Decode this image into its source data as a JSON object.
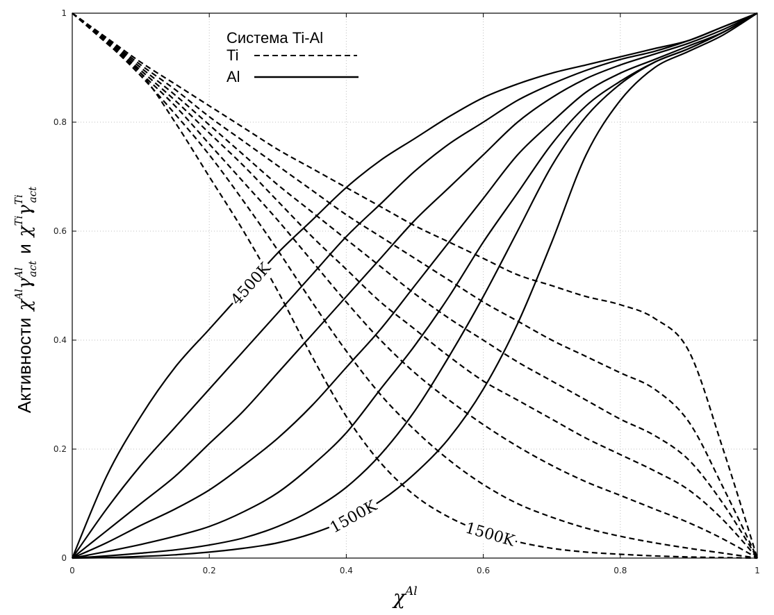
{
  "chart_data": {
    "type": "line",
    "title": "",
    "xlabel": {
      "base": "χ",
      "sup": "Al"
    },
    "ylabel": {
      "prefix": "Активности",
      "al": {
        "base": "χ",
        "sup": "Al",
        "gamma": "γ",
        "gamma_sup": "Al",
        "gamma_sub": "act"
      },
      "conj": "и",
      "ti": {
        "base": "χ",
        "sup": "Ti",
        "gamma": "γ",
        "gamma_sup": "Ti",
        "gamma_sub": "act"
      }
    },
    "xlim": [
      0,
      1
    ],
    "ylim": [
      0,
      1
    ],
    "x_ticks": [
      0,
      0.2,
      0.4,
      0.6,
      0.8,
      1
    ],
    "y_ticks": [
      0,
      0.2,
      0.4,
      0.6,
      0.8,
      1
    ],
    "x_tick_labels": [
      "0",
      "0.2",
      "0.4",
      "0.6",
      "0.8",
      "1"
    ],
    "y_tick_labels": [
      "0",
      "0.2",
      "0.4",
      "0.6",
      "0.8",
      "1"
    ],
    "grid": true,
    "legend": {
      "placement": "top-center",
      "title": "Система Ti-Al",
      "entries": [
        {
          "label": "Ti",
          "style": "dashed"
        },
        {
          "label": "Al",
          "style": "solid"
        }
      ]
    },
    "annotations": [
      {
        "text": "4500K",
        "curve": "al-4500K",
        "at_x": 0.26
      },
      {
        "text": "1500K",
        "curve": "al-1500K",
        "at_x": 0.41
      },
      {
        "text": "1500K",
        "curve": "ti-1500K",
        "at_x": 0.61
      }
    ],
    "series": [
      {
        "id": "al-4500K",
        "element": "Al",
        "style": "solid",
        "x": [
          0,
          0.05,
          0.1,
          0.15,
          0.2,
          0.25,
          0.3,
          0.35,
          0.4,
          0.45,
          0.5,
          0.55,
          0.6,
          0.65,
          0.7,
          0.75,
          0.8,
          0.85,
          0.9,
          0.95,
          1
        ],
        "y": [
          0,
          0.15,
          0.26,
          0.35,
          0.42,
          0.49,
          0.56,
          0.62,
          0.68,
          0.73,
          0.77,
          0.81,
          0.845,
          0.87,
          0.89,
          0.905,
          0.92,
          0.935,
          0.95,
          0.975,
          1
        ]
      },
      {
        "id": "al-4000K",
        "element": "Al",
        "style": "solid",
        "x": [
          0,
          0.05,
          0.1,
          0.15,
          0.2,
          0.25,
          0.3,
          0.35,
          0.4,
          0.45,
          0.5,
          0.55,
          0.6,
          0.65,
          0.7,
          0.75,
          0.8,
          0.85,
          0.9,
          0.95,
          1
        ],
        "y": [
          0,
          0.09,
          0.17,
          0.24,
          0.31,
          0.38,
          0.45,
          0.52,
          0.59,
          0.65,
          0.71,
          0.76,
          0.8,
          0.84,
          0.87,
          0.895,
          0.915,
          0.93,
          0.95,
          0.975,
          1
        ]
      },
      {
        "id": "al-3500K",
        "element": "Al",
        "style": "solid",
        "x": [
          0,
          0.05,
          0.1,
          0.15,
          0.2,
          0.25,
          0.3,
          0.35,
          0.4,
          0.45,
          0.5,
          0.55,
          0.6,
          0.65,
          0.7,
          0.75,
          0.8,
          0.85,
          0.9,
          0.95,
          1
        ],
        "y": [
          0,
          0.05,
          0.1,
          0.15,
          0.21,
          0.27,
          0.34,
          0.41,
          0.48,
          0.55,
          0.62,
          0.68,
          0.74,
          0.8,
          0.845,
          0.88,
          0.905,
          0.925,
          0.945,
          0.97,
          1
        ]
      },
      {
        "id": "al-3000K",
        "element": "Al",
        "style": "solid",
        "x": [
          0,
          0.05,
          0.1,
          0.15,
          0.2,
          0.25,
          0.3,
          0.35,
          0.4,
          0.45,
          0.5,
          0.55,
          0.6,
          0.65,
          0.7,
          0.75,
          0.8,
          0.85,
          0.9,
          0.95,
          1
        ],
        "y": [
          0,
          0.028,
          0.06,
          0.09,
          0.125,
          0.17,
          0.22,
          0.28,
          0.35,
          0.42,
          0.5,
          0.58,
          0.66,
          0.74,
          0.8,
          0.855,
          0.89,
          0.915,
          0.94,
          0.965,
          1
        ]
      },
      {
        "id": "al-2500K",
        "element": "Al",
        "style": "solid",
        "x": [
          0,
          0.05,
          0.1,
          0.15,
          0.2,
          0.25,
          0.3,
          0.35,
          0.4,
          0.45,
          0.5,
          0.55,
          0.6,
          0.65,
          0.7,
          0.75,
          0.8,
          0.85,
          0.9,
          0.95,
          1
        ],
        "y": [
          0,
          0.012,
          0.025,
          0.04,
          0.058,
          0.085,
          0.12,
          0.17,
          0.23,
          0.31,
          0.39,
          0.48,
          0.58,
          0.67,
          0.76,
          0.83,
          0.875,
          0.91,
          0.935,
          0.965,
          1
        ]
      },
      {
        "id": "al-2000K",
        "element": "Al",
        "style": "solid",
        "x": [
          0,
          0.05,
          0.1,
          0.15,
          0.2,
          0.25,
          0.3,
          0.35,
          0.4,
          0.45,
          0.5,
          0.55,
          0.6,
          0.65,
          0.7,
          0.75,
          0.8,
          0.85,
          0.9,
          0.95,
          1
        ],
        "y": [
          0,
          0.004,
          0.009,
          0.015,
          0.024,
          0.037,
          0.058,
          0.088,
          0.13,
          0.19,
          0.27,
          0.37,
          0.48,
          0.6,
          0.72,
          0.81,
          0.87,
          0.91,
          0.935,
          0.965,
          1
        ]
      },
      {
        "id": "al-1500K",
        "element": "Al",
        "style": "solid",
        "x": [
          0,
          0.05,
          0.1,
          0.15,
          0.2,
          0.25,
          0.3,
          0.35,
          0.4,
          0.45,
          0.5,
          0.55,
          0.6,
          0.65,
          0.7,
          0.75,
          0.8,
          0.85,
          0.9,
          0.95,
          1
        ],
        "y": [
          0,
          0.001,
          0.003,
          0.006,
          0.011,
          0.018,
          0.028,
          0.045,
          0.07,
          0.105,
          0.155,
          0.22,
          0.31,
          0.43,
          0.58,
          0.74,
          0.84,
          0.9,
          0.93,
          0.96,
          1
        ]
      },
      {
        "id": "ti-4500K",
        "element": "Ti",
        "style": "dashed",
        "x": [
          0,
          0.05,
          0.1,
          0.15,
          0.2,
          0.25,
          0.3,
          0.35,
          0.4,
          0.45,
          0.5,
          0.55,
          0.6,
          0.65,
          0.7,
          0.75,
          0.8,
          0.85,
          0.9,
          0.95,
          1
        ],
        "y": [
          1,
          0.955,
          0.91,
          0.87,
          0.83,
          0.79,
          0.75,
          0.715,
          0.68,
          0.645,
          0.61,
          0.58,
          0.55,
          0.52,
          0.5,
          0.48,
          0.465,
          0.44,
          0.38,
          0.2,
          0
        ]
      },
      {
        "id": "ti-4000K",
        "element": "Ti",
        "style": "dashed",
        "x": [
          0,
          0.05,
          0.1,
          0.15,
          0.2,
          0.25,
          0.3,
          0.35,
          0.4,
          0.45,
          0.5,
          0.55,
          0.6,
          0.65,
          0.7,
          0.75,
          0.8,
          0.85,
          0.9,
          0.95,
          1
        ],
        "y": [
          1,
          0.953,
          0.905,
          0.86,
          0.81,
          0.765,
          0.72,
          0.675,
          0.63,
          0.59,
          0.55,
          0.51,
          0.47,
          0.435,
          0.4,
          0.37,
          0.34,
          0.31,
          0.25,
          0.13,
          0
        ]
      },
      {
        "id": "ti-3500K",
        "element": "Ti",
        "style": "dashed",
        "x": [
          0,
          0.05,
          0.1,
          0.15,
          0.2,
          0.25,
          0.3,
          0.35,
          0.4,
          0.45,
          0.5,
          0.55,
          0.6,
          0.65,
          0.7,
          0.75,
          0.8,
          0.85,
          0.9,
          0.95,
          1
        ],
        "y": [
          1,
          0.952,
          0.9,
          0.85,
          0.795,
          0.74,
          0.685,
          0.635,
          0.585,
          0.535,
          0.485,
          0.44,
          0.4,
          0.36,
          0.325,
          0.29,
          0.255,
          0.225,
          0.18,
          0.1,
          0
        ]
      },
      {
        "id": "ti-3000K",
        "element": "Ti",
        "style": "dashed",
        "x": [
          0,
          0.05,
          0.1,
          0.15,
          0.2,
          0.25,
          0.3,
          0.35,
          0.4,
          0.45,
          0.5,
          0.55,
          0.6,
          0.65,
          0.7,
          0.75,
          0.8,
          0.85,
          0.9,
          0.95,
          1
        ],
        "y": [
          1,
          0.95,
          0.895,
          0.84,
          0.78,
          0.72,
          0.655,
          0.59,
          0.53,
          0.47,
          0.42,
          0.37,
          0.325,
          0.29,
          0.255,
          0.22,
          0.19,
          0.16,
          0.125,
          0.07,
          0
        ]
      },
      {
        "id": "ti-2500K",
        "element": "Ti",
        "style": "dashed",
        "x": [
          0,
          0.05,
          0.1,
          0.15,
          0.2,
          0.25,
          0.3,
          0.35,
          0.4,
          0.45,
          0.5,
          0.55,
          0.6,
          0.65,
          0.7,
          0.75,
          0.8,
          0.85,
          0.9,
          0.95,
          1
        ],
        "y": [
          1,
          0.948,
          0.89,
          0.83,
          0.76,
          0.69,
          0.62,
          0.545,
          0.47,
          0.4,
          0.34,
          0.29,
          0.245,
          0.205,
          0.17,
          0.14,
          0.115,
          0.09,
          0.065,
          0.035,
          0
        ]
      },
      {
        "id": "ti-2000K",
        "element": "Ti",
        "style": "dashed",
        "x": [
          0,
          0.05,
          0.1,
          0.15,
          0.2,
          0.25,
          0.3,
          0.35,
          0.4,
          0.45,
          0.5,
          0.55,
          0.6,
          0.65,
          0.7,
          0.75,
          0.8,
          0.85,
          0.9,
          0.95,
          1
        ],
        "y": [
          1,
          0.946,
          0.885,
          0.815,
          0.74,
          0.655,
          0.565,
          0.47,
          0.38,
          0.3,
          0.235,
          0.18,
          0.135,
          0.1,
          0.075,
          0.055,
          0.04,
          0.028,
          0.018,
          0.009,
          0
        ]
      },
      {
        "id": "ti-1500K",
        "element": "Ti",
        "style": "dashed",
        "x": [
          0,
          0.05,
          0.1,
          0.15,
          0.2,
          0.25,
          0.3,
          0.35,
          0.4,
          0.45,
          0.5,
          0.55,
          0.6,
          0.65,
          0.7,
          0.75,
          0.8,
          0.85,
          0.9,
          0.95,
          1
        ],
        "y": [
          1,
          0.945,
          0.89,
          0.8,
          0.7,
          0.6,
          0.49,
          0.37,
          0.26,
          0.175,
          0.115,
          0.075,
          0.048,
          0.03,
          0.018,
          0.011,
          0.007,
          0.004,
          0.002,
          0.001,
          0
        ]
      }
    ]
  }
}
